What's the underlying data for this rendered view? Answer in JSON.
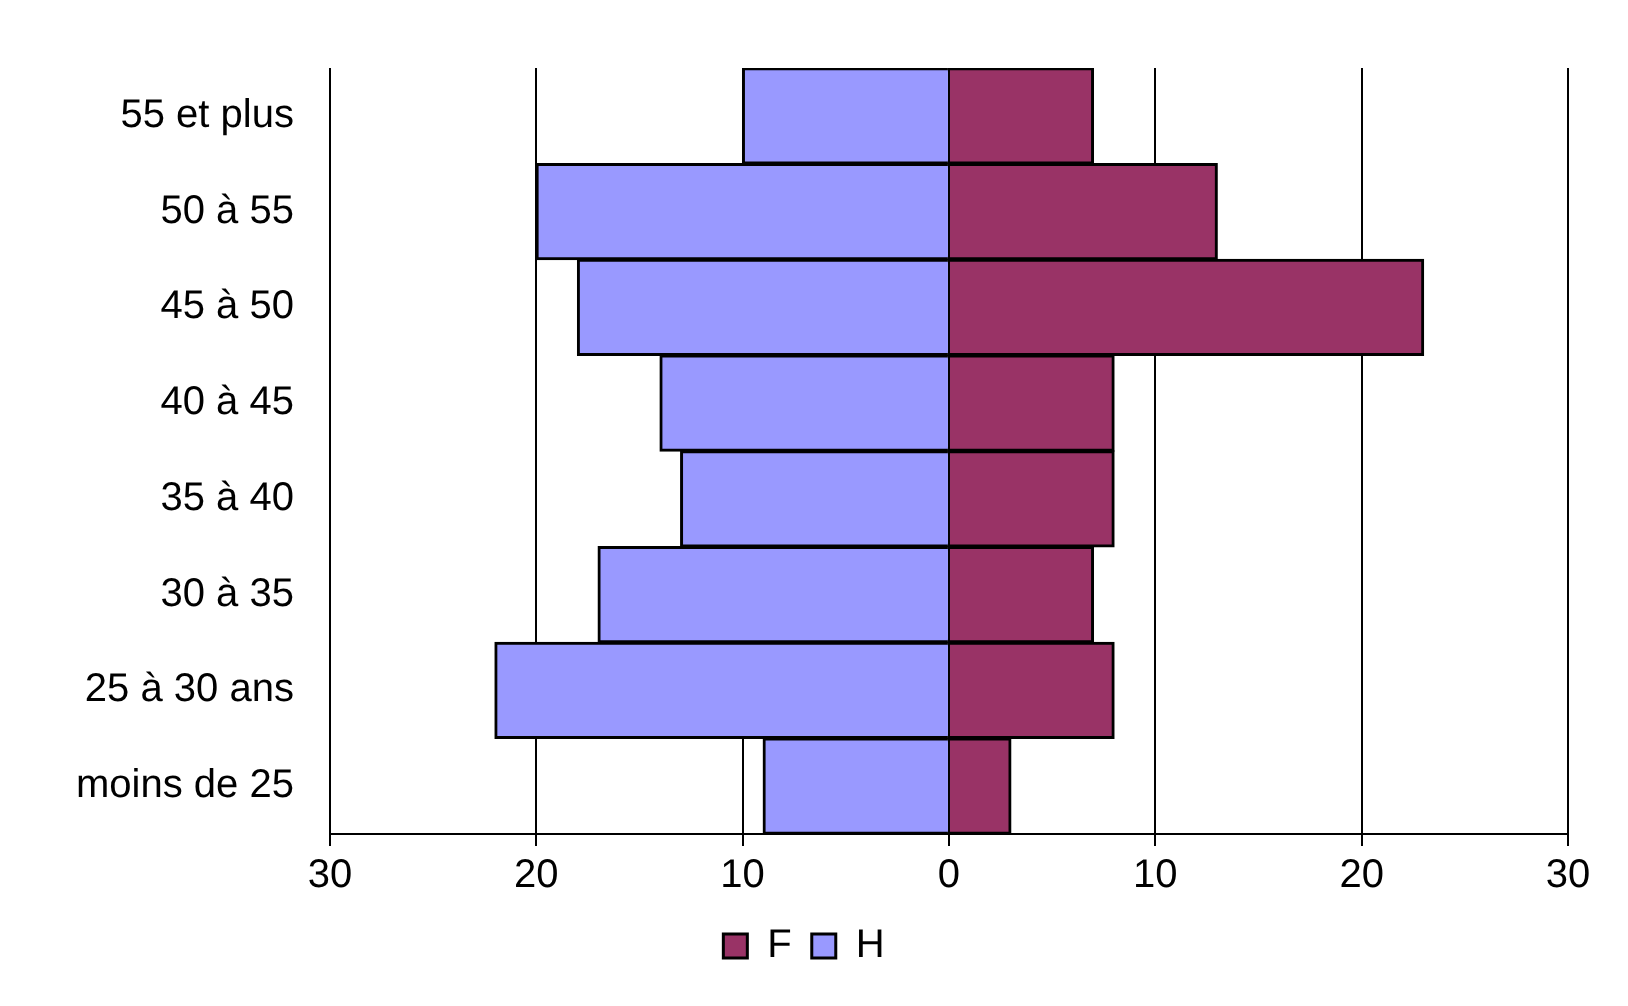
{
  "chart_data": {
    "type": "bar",
    "orientation": "horizontal",
    "stacked": true,
    "categories": [
      "55 et plus",
      "50 à 55",
      "45 à 50",
      "40 à 45",
      "35 à 40",
      "30 à 35",
      "25 à 30 ans",
      "moins de 25"
    ],
    "series": [
      {
        "name": "F",
        "color": "#993366",
        "values": [
          7,
          13,
          23,
          8,
          8,
          7,
          8,
          3
        ]
      },
      {
        "name": "H",
        "color": "#9999ff",
        "values": [
          -10,
          -20,
          -18,
          -14,
          -13,
          -17,
          -22,
          -9
        ]
      }
    ],
    "xlim": [
      -30,
      30
    ],
    "xticks": [
      {
        "value": -30,
        "label": "30"
      },
      {
        "value": -20,
        "label": "20"
      },
      {
        "value": -10,
        "label": "10"
      },
      0,
      10,
      20,
      30
    ],
    "grid": "x",
    "legend": "bottom"
  }
}
